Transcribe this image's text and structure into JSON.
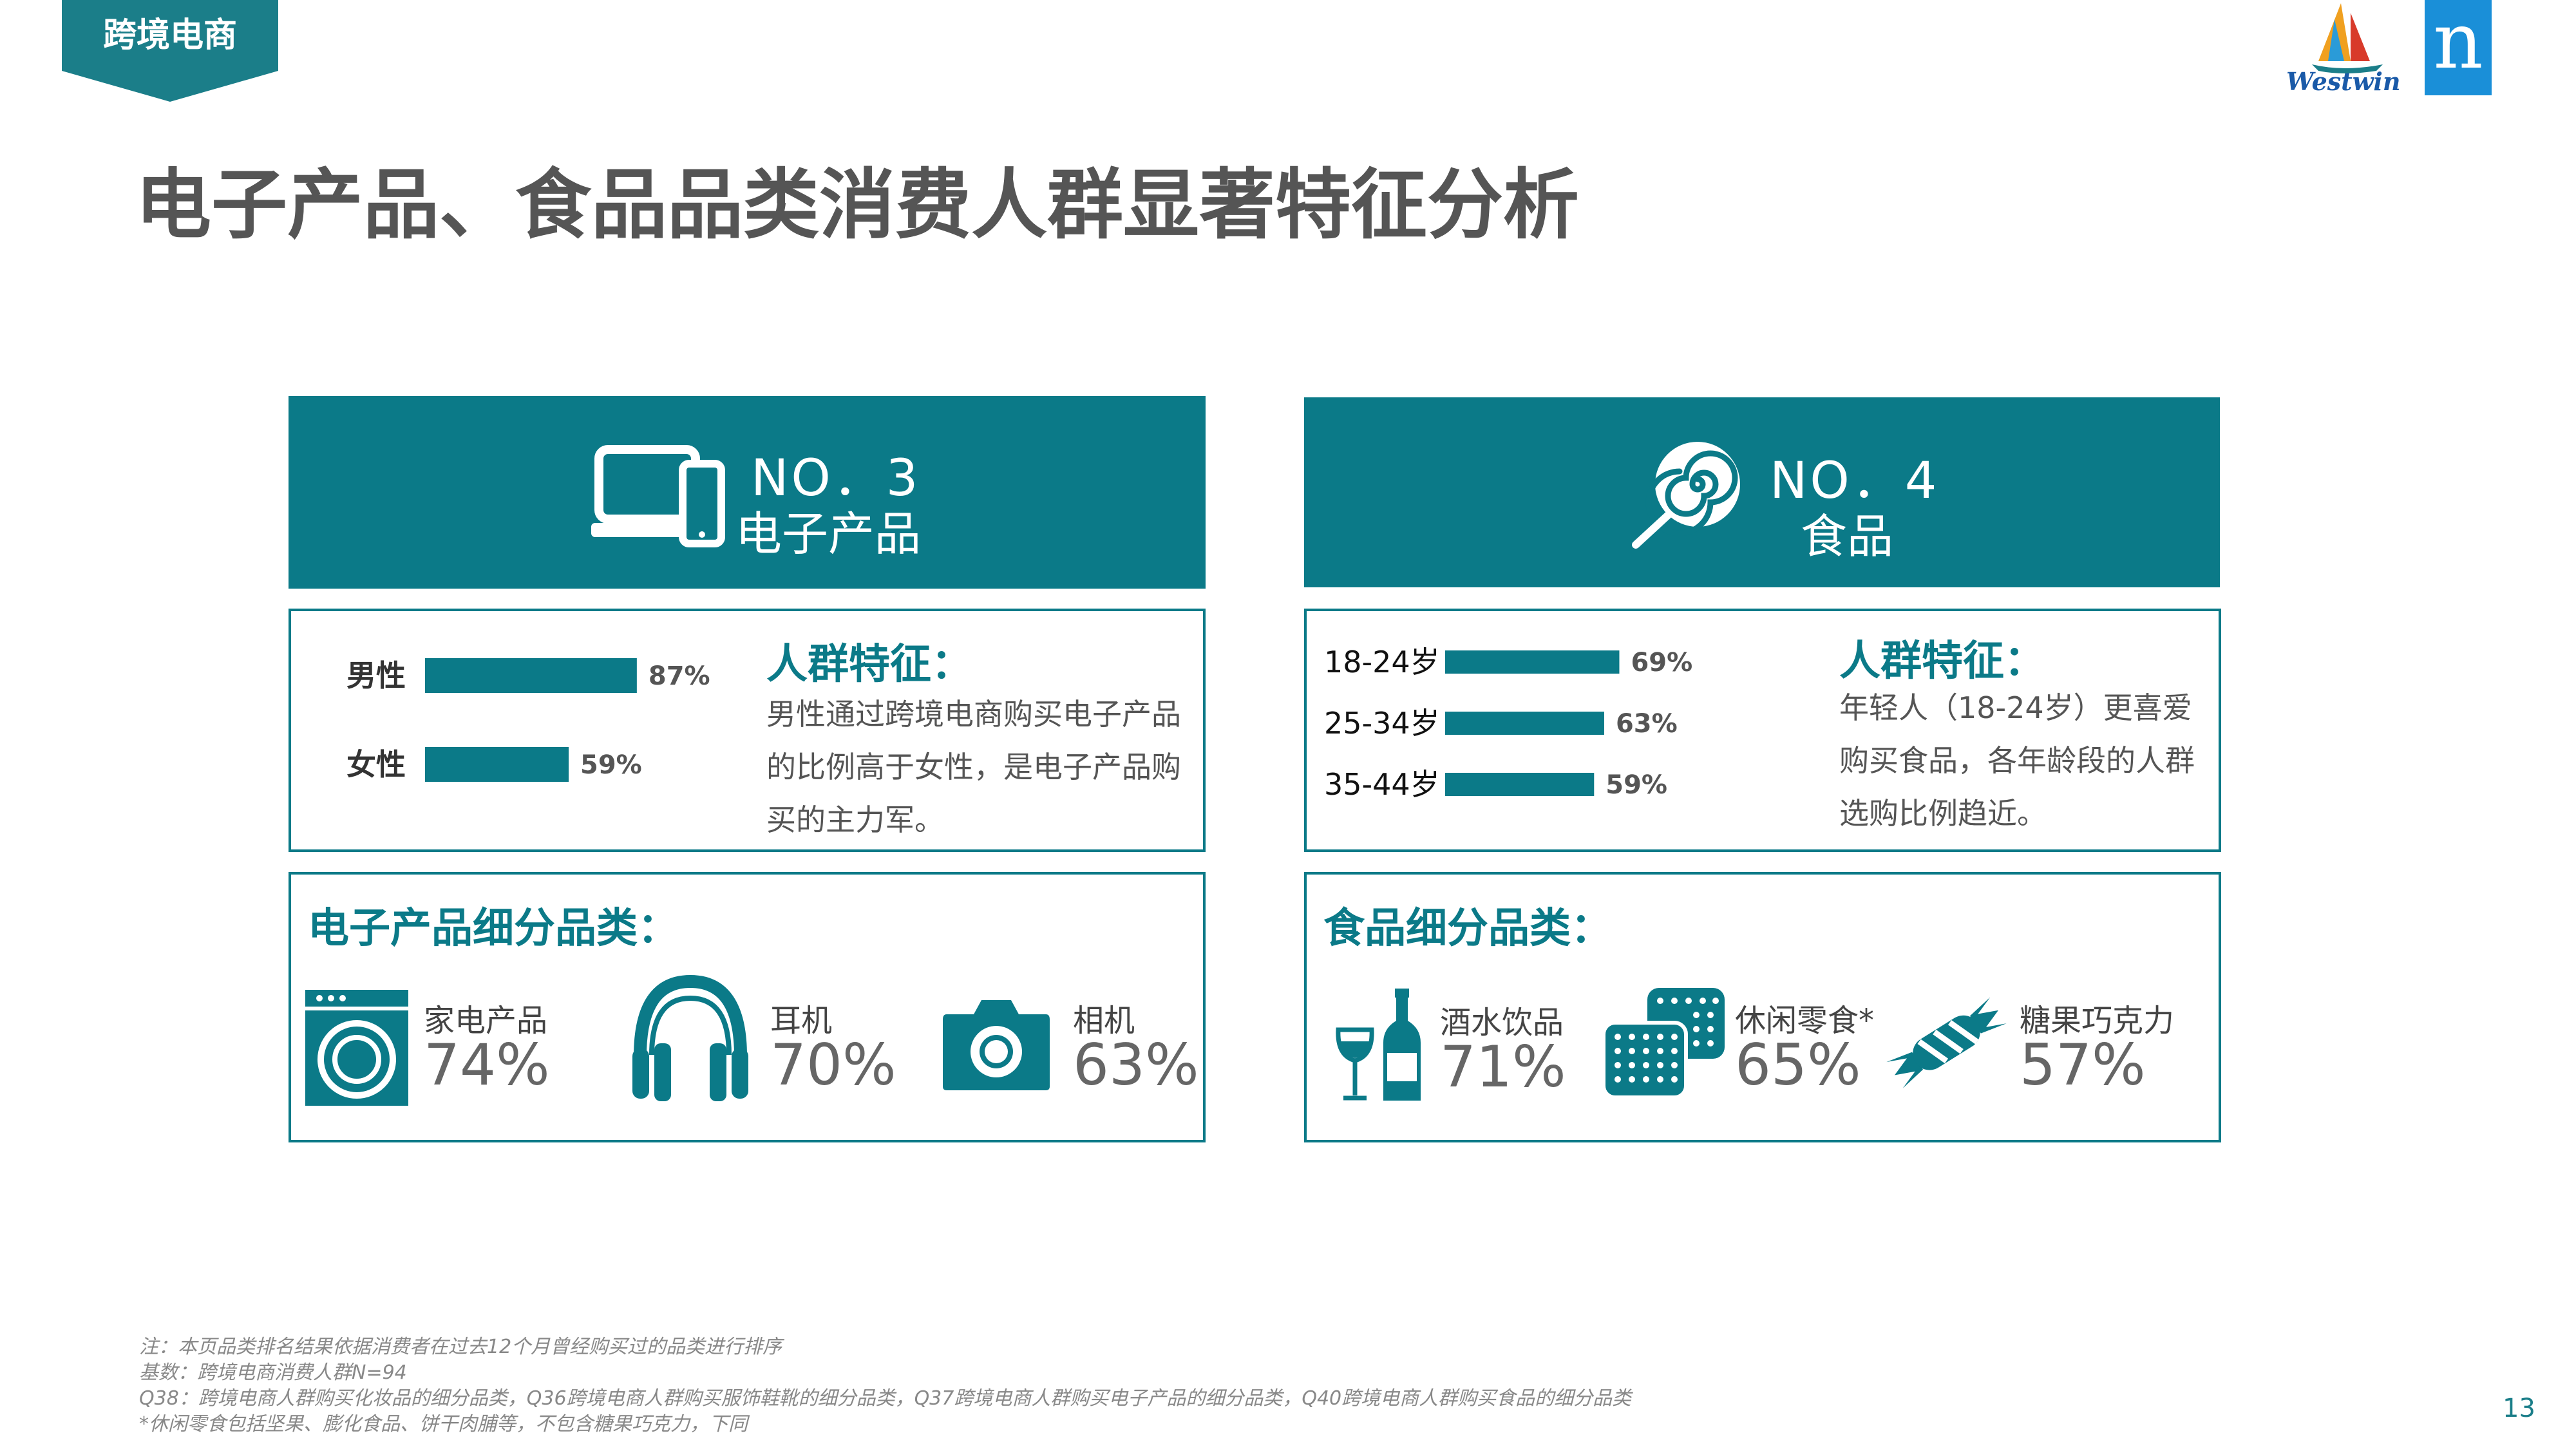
{
  "section_tag": "跨境电商",
  "title": "电子产品、食品品类消费人群显著特征分析",
  "logo": {
    "westwin_text": "Westwin",
    "nielsen_letter": "n"
  },
  "categories": [
    {
      "no": "NO．3",
      "name": "电子产品",
      "icon": "laptop-phone-icon",
      "feature_title": "人群特征：",
      "feature_text": "男性通过跨境电商购买电子产品的比例高于女性，是电子产品购买的主力军。",
      "sub_title": "电子产品细分品类：",
      "items": [
        {
          "name": "家电产品",
          "pct": "74%",
          "icon": "washing-machine-icon"
        },
        {
          "name": "耳机",
          "pct": "70%",
          "icon": "headphones-icon"
        },
        {
          "name": "相机",
          "pct": "63%",
          "icon": "camera-icon"
        }
      ]
    },
    {
      "no": "NO．4",
      "name": "食品",
      "icon": "lollipop-icon",
      "feature_title": "人群特征：",
      "feature_text": "年轻人（18-24岁）更喜爱购买食品，各年龄段的人群选购比例趋近。",
      "sub_title": "食品细分品类：",
      "items": [
        {
          "name": "酒水饮品",
          "pct": "71%",
          "icon": "wine-icon"
        },
        {
          "name": "休闲零食*",
          "pct": "65%",
          "icon": "biscuit-icon"
        },
        {
          "name": "糖果巧克力",
          "pct": "57%",
          "icon": "candy-icon"
        }
      ]
    }
  ],
  "chart_data": [
    {
      "type": "bar",
      "orientation": "horizontal",
      "categories": [
        "男性",
        "女性"
      ],
      "values": [
        87,
        59
      ],
      "labels": [
        "87%",
        "59%"
      ],
      "xlim": [
        0,
        100
      ],
      "color": "#0b7a88"
    },
    {
      "type": "bar",
      "orientation": "horizontal",
      "categories": [
        "18-24岁",
        "25-34岁",
        "35-44岁"
      ],
      "values": [
        69,
        63,
        59
      ],
      "labels": [
        "69%",
        "63%",
        "59%"
      ],
      "xlim": [
        0,
        100
      ],
      "color": "#0b7a88"
    }
  ],
  "notes": [
    "注：本页品类排名结果依据消费者在过去12个月曾经购买过的品类进行排序",
    "基数：跨境电商消费人群N=94",
    "Q38：跨境电商人群购买化妆品的细分品类，Q36跨境电商人群购买服饰鞋靴的细分品类，Q37跨境电商人群购买电子产品的细分品类，Q40跨境电商人群购买食品的细分品类",
    "*休闲零食包括坚果、膨化食品、饼干肉脯等，不包含糖果巧克力，下同"
  ],
  "page_number": "13"
}
